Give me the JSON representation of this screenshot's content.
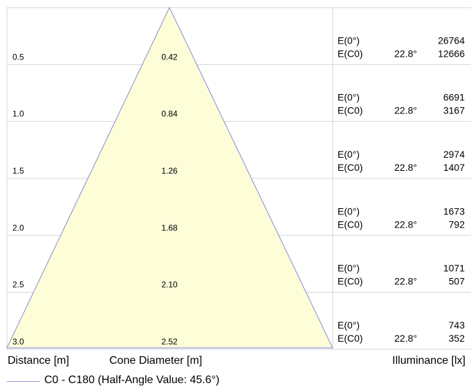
{
  "colors": {
    "cone_fill": "#fdfdd8",
    "cone_stroke": "#9a9ad6",
    "grid": "#d4d4d4"
  },
  "rows": [
    {
      "distance": "0.5",
      "diameter": "0.42",
      "e0_label": "E(0°)",
      "e0_value": "26764",
      "ec0_label": "E(C0)",
      "angle": "22.8°",
      "ec0_value": "12666"
    },
    {
      "distance": "1.0",
      "diameter": "0.84",
      "e0_label": "E(0°)",
      "e0_value": "6691",
      "ec0_label": "E(C0)",
      "angle": "22.8°",
      "ec0_value": "3167"
    },
    {
      "distance": "1.5",
      "diameter": "1.26",
      "e0_label": "E(0°)",
      "e0_value": "2974",
      "ec0_label": "E(C0)",
      "angle": "22.8°",
      "ec0_value": "1407"
    },
    {
      "distance": "2.0",
      "diameter": "1.68",
      "e0_label": "E(0°)",
      "e0_value": "1673",
      "ec0_label": "E(C0)",
      "angle": "22.8°",
      "ec0_value": "792"
    },
    {
      "distance": "2.5",
      "diameter": "2.10",
      "e0_label": "E(0°)",
      "e0_value": "1071",
      "ec0_label": "E(C0)",
      "angle": "22.8°",
      "ec0_value": "507"
    },
    {
      "distance": "3.0",
      "diameter": "2.52",
      "e0_label": "E(0°)",
      "e0_value": "743",
      "ec0_label": "E(C0)",
      "angle": "22.8°",
      "ec0_value": "352"
    }
  ],
  "footer": {
    "distance_label": "Distance [m]",
    "diameter_label": "Cone Diameter [m]",
    "illuminance_label": "Illuminance [lx]",
    "legend_label": "C0 - C180 (Half-Angle Value: 45.6°)"
  }
}
